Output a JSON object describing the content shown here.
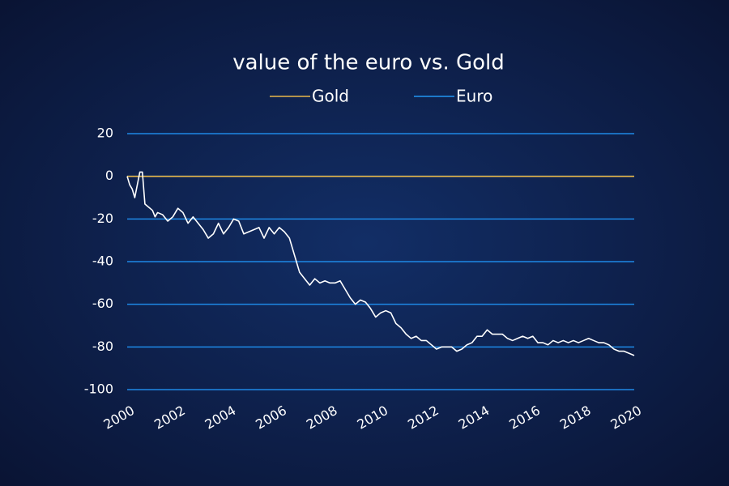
{
  "chart_data": {
    "type": "line",
    "title": "value of the euro vs. Gold",
    "xlim": [
      2000,
      2020
    ],
    "xticks": [
      2000,
      2002,
      2004,
      2006,
      2008,
      2010,
      2012,
      2014,
      2016,
      2018,
      2020
    ],
    "ylim": [
      -100,
      20
    ],
    "yticks": [
      -100,
      -80,
      -60,
      -40,
      -20,
      0,
      20
    ],
    "grid": true,
    "grid_color": "#1e88e5",
    "series": [
      {
        "name": "Gold",
        "color": "#e8b84a",
        "x": [
          2000,
          2020
        ],
        "values": [
          0,
          0
        ]
      },
      {
        "name": "Euro",
        "color": "#ffffff",
        "legend_color": "#2196f3",
        "x": [
          2000.0,
          2000.1,
          2000.2,
          2000.3,
          2000.4,
          2000.5,
          2000.6,
          2000.7,
          2000.9,
          2001.0,
          2001.1,
          2001.2,
          2001.4,
          2001.6,
          2001.8,
          2002.0,
          2002.2,
          2002.4,
          2002.6,
          2002.8,
          2003.0,
          2003.2,
          2003.4,
          2003.6,
          2003.8,
          2004.0,
          2004.2,
          2004.4,
          2004.6,
          2004.8,
          2005.0,
          2005.2,
          2005.4,
          2005.6,
          2005.8,
          2006.0,
          2006.2,
          2006.4,
          2006.6,
          2006.8,
          2007.0,
          2007.2,
          2007.4,
          2007.6,
          2007.8,
          2008.0,
          2008.2,
          2008.4,
          2008.6,
          2008.8,
          2009.0,
          2009.2,
          2009.4,
          2009.6,
          2009.8,
          2010.0,
          2010.2,
          2010.4,
          2010.6,
          2010.8,
          2011.0,
          2011.2,
          2011.4,
          2011.6,
          2011.8,
          2012.0,
          2012.2,
          2012.4,
          2012.6,
          2012.8,
          2013.0,
          2013.2,
          2013.4,
          2013.6,
          2013.8,
          2014.0,
          2014.2,
          2014.4,
          2014.6,
          2014.8,
          2015.0,
          2015.2,
          2015.4,
          2015.6,
          2015.8,
          2016.0,
          2016.2,
          2016.4,
          2016.6,
          2016.8,
          2017.0,
          2017.2,
          2017.4,
          2017.6,
          2017.8,
          2018.0,
          2018.2,
          2018.4,
          2018.6,
          2018.8,
          2019.0,
          2019.2,
          2019.4,
          2019.6,
          2019.8,
          2020.0
        ],
        "values": [
          0,
          -4,
          -6,
          -10,
          -4,
          2,
          2,
          -13,
          -15,
          -16,
          -19,
          -17,
          -18,
          -21,
          -19,
          -15,
          -17,
          -22,
          -19,
          -22,
          -25,
          -29,
          -27,
          -22,
          -27,
          -24,
          -20,
          -21,
          -27,
          -26,
          -25,
          -24,
          -29,
          -24,
          -27,
          -24,
          -26,
          -29,
          -37,
          -45,
          -48,
          -51,
          -48,
          -50,
          -49,
          -50,
          -50,
          -49,
          -53,
          -57,
          -60,
          -58,
          -59,
          -62,
          -66,
          -64,
          -63,
          -64,
          -69,
          -71,
          -74,
          -76,
          -75,
          -77,
          -77,
          -79,
          -81,
          -80,
          -80,
          -80,
          -82,
          -81,
          -79,
          -78,
          -75,
          -75,
          -72,
          -74,
          -74,
          -74,
          -76,
          -77,
          -76,
          -75,
          -76,
          -75,
          -78,
          -78,
          -79,
          -77,
          -78,
          -77,
          -78,
          -77,
          -78,
          -77,
          -76,
          -77,
          -78,
          -78,
          -79,
          -81,
          -82,
          -82,
          -83,
          -84
        ]
      }
    ]
  }
}
